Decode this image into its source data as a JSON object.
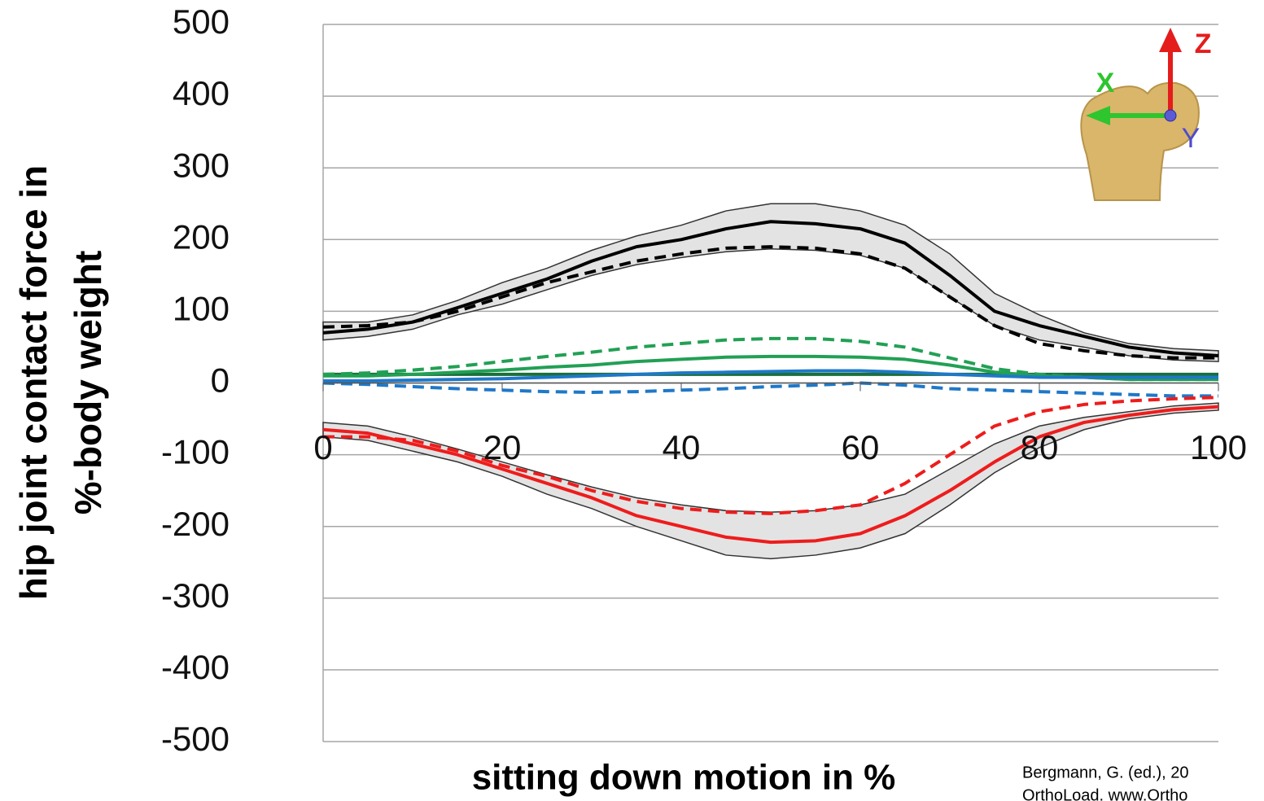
{
  "chart_data": {
    "type": "line",
    "y_label": [
      "hip joint contact force in",
      "%-body weight"
    ],
    "x_label": "sitting down motion in %",
    "source": [
      "Bergmann, G. (ed.), 20",
      "OrthoLoad. www.Ortho"
    ],
    "axis_icon_labels": {
      "z": "Z",
      "x": "X",
      "y": "Y"
    },
    "x": [
      0,
      5,
      10,
      15,
      20,
      25,
      30,
      35,
      40,
      45,
      50,
      55,
      60,
      65,
      70,
      75,
      80,
      85,
      90,
      95,
      100
    ],
    "xlim": [
      0,
      100
    ],
    "xticks": [
      0,
      20,
      40,
      60,
      80,
      100
    ],
    "ylim": [
      -500,
      500
    ],
    "yticks": [
      -500,
      -400,
      -300,
      -200,
      -100,
      0,
      100,
      200,
      300,
      400,
      500
    ],
    "grid": true,
    "bands": [
      {
        "color": "#e3e3e3",
        "upper": [
          85,
          85,
          95,
          115,
          140,
          160,
          185,
          205,
          220,
          240,
          250,
          250,
          240,
          220,
          180,
          125,
          95,
          70,
          55,
          48,
          45
        ],
        "lower": [
          60,
          65,
          75,
          95,
          110,
          130,
          150,
          165,
          175,
          183,
          187,
          185,
          178,
          160,
          120,
          80,
          60,
          50,
          38,
          32,
          30
        ]
      },
      {
        "color": "#e3e3e3",
        "upper": [
          -55,
          -60,
          -75,
          -92,
          -110,
          -128,
          -145,
          -160,
          -170,
          -178,
          -180,
          -178,
          -170,
          -155,
          -120,
          -85,
          -60,
          -48,
          -40,
          -32,
          -28
        ],
        "lower": [
          -75,
          -80,
          -95,
          -110,
          -130,
          -155,
          -175,
          -200,
          -220,
          -240,
          -245,
          -240,
          -230,
          -210,
          -170,
          -125,
          -90,
          -65,
          -50,
          -42,
          -38
        ]
      }
    ],
    "series": [
      {
        "color": "#1a6f3a",
        "dash": false,
        "values": [
          12,
          12,
          12,
          12,
          12,
          12,
          12,
          12,
          12,
          12,
          12,
          12,
          12,
          12,
          12,
          12,
          12,
          12,
          12,
          12,
          12
        ]
      },
      {
        "color": "#22a055",
        "dash": false,
        "values": [
          10,
          10,
          12,
          15,
          18,
          22,
          25,
          30,
          33,
          36,
          37,
          37,
          36,
          33,
          25,
          15,
          10,
          8,
          5,
          5,
          5
        ]
      },
      {
        "color": "#22a055",
        "dash": true,
        "values": [
          12,
          14,
          18,
          23,
          30,
          37,
          43,
          50,
          55,
          60,
          62,
          62,
          58,
          50,
          35,
          20,
          12,
          8,
          5,
          5,
          5
        ]
      },
      {
        "color": "#1f78c8",
        "dash": false,
        "values": [
          3,
          3,
          4,
          5,
          6,
          8,
          10,
          12,
          14,
          15,
          16,
          17,
          17,
          15,
          12,
          10,
          8,
          8,
          8,
          8,
          8
        ]
      },
      {
        "color": "#1f78c8",
        "dash": true,
        "values": [
          0,
          -2,
          -5,
          -8,
          -10,
          -12,
          -13,
          -12,
          -10,
          -8,
          -5,
          -3,
          0,
          -3,
          -8,
          -10,
          -12,
          -14,
          -16,
          -18,
          -18
        ]
      },
      {
        "color": "#000000",
        "dash": false,
        "values": [
          70,
          75,
          85,
          105,
          125,
          145,
          170,
          190,
          200,
          215,
          225,
          222,
          215,
          195,
          150,
          100,
          80,
          65,
          50,
          42,
          38
        ]
      },
      {
        "color": "#000000",
        "dash": true,
        "values": [
          78,
          80,
          85,
          100,
          120,
          140,
          155,
          170,
          180,
          188,
          190,
          188,
          180,
          160,
          120,
          80,
          55,
          45,
          38,
          35,
          35
        ]
      },
      {
        "color": "#ee1c1c",
        "dash": false,
        "values": [
          -65,
          -70,
          -85,
          -100,
          -120,
          -140,
          -160,
          -185,
          -200,
          -215,
          -222,
          -220,
          -210,
          -185,
          -150,
          -110,
          -75,
          -55,
          -45,
          -37,
          -33
        ]
      },
      {
        "color": "#ee1c1c",
        "dash": true,
        "values": [
          -75,
          -75,
          -80,
          -95,
          -115,
          -130,
          -150,
          -165,
          -175,
          -180,
          -182,
          -178,
          -170,
          -140,
          -100,
          -60,
          -40,
          -30,
          -25,
          -22,
          -20
        ]
      }
    ]
  }
}
